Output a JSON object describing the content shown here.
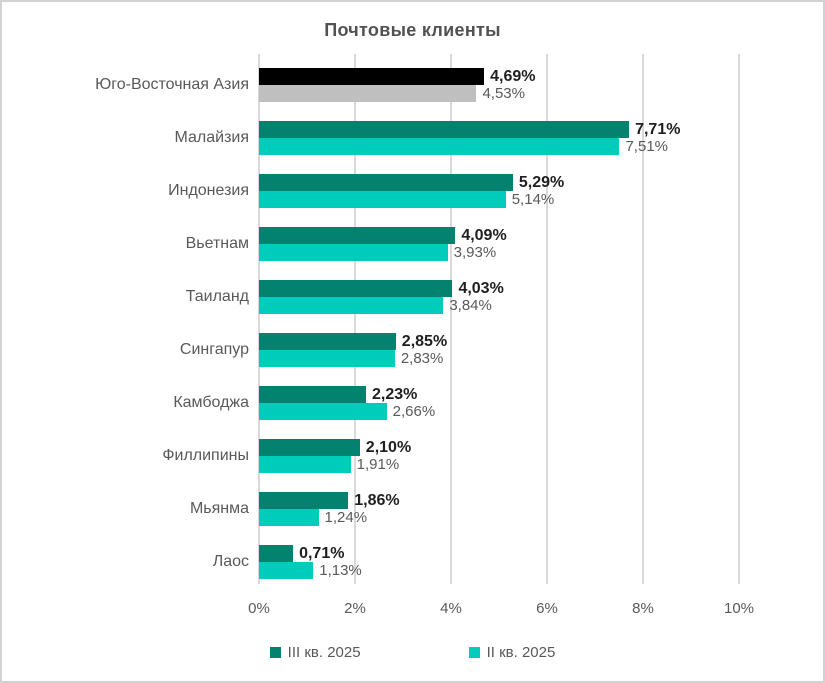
{
  "chart_data": {
    "type": "bar",
    "orientation": "horizontal",
    "title": "Почтовые клиенты",
    "categories": [
      "Юго-Восточная Азия",
      "Малайзия",
      "Индонезия",
      "Вьетнам",
      "Таиланд",
      "Сингапур",
      "Камбоджа",
      "Филлипины",
      "Мьянма",
      "Лаос"
    ],
    "series": [
      {
        "name": "III кв. 2025",
        "color": "#038270",
        "values": [
          4.69,
          7.71,
          5.29,
          4.09,
          4.03,
          2.85,
          2.23,
          2.1,
          1.86,
          0.71
        ],
        "labels": [
          "4,69%",
          "7,71%",
          "5,29%",
          "4,09%",
          "4,03%",
          "2,85%",
          "2,23%",
          "2,10%",
          "1,86%",
          "0,71%"
        ]
      },
      {
        "name": "II кв. 2025",
        "color": "#00ccbb",
        "values": [
          4.53,
          7.51,
          5.14,
          3.93,
          3.84,
          2.83,
          2.66,
          1.91,
          1.24,
          1.13
        ],
        "labels": [
          "4,53%",
          "7,51%",
          "5,14%",
          "3,93%",
          "3,84%",
          "2,83%",
          "2,66%",
          "1,91%",
          "1,24%",
          "1,13%"
        ]
      }
    ],
    "highlight_category": "Юго-Восточная Азия",
    "highlight_colors": [
      "#000000",
      "#bfbfbf"
    ],
    "xlim": [
      0,
      10
    ],
    "x_ticks": [
      {
        "value": 0,
        "label": "0%"
      },
      {
        "value": 2,
        "label": "2%"
      },
      {
        "value": 4,
        "label": "4%"
      },
      {
        "value": 6,
        "label": "6%"
      },
      {
        "value": 8,
        "label": "8%"
      },
      {
        "value": 10,
        "label": "10%"
      }
    ],
    "grid": true,
    "legend_position": "bottom",
    "value_label_colors": {
      "primary": "#1f1f1f",
      "secondary": "#595959"
    },
    "gridline_color": "#d9d9d9"
  }
}
